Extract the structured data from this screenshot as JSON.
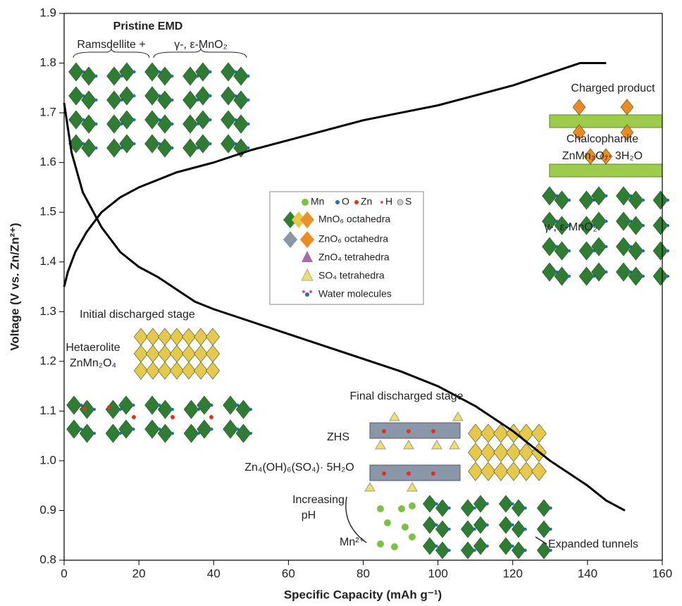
{
  "chart_data": {
    "type": "line",
    "x_label": "Specific Capacity (mAh g⁻¹)",
    "y_label": "Voltage (V vs. Zn/Zn²⁺)",
    "xlim": [
      0,
      160
    ],
    "ylim": [
      0.8,
      1.9
    ],
    "xticks": [
      0,
      20,
      40,
      60,
      80,
      100,
      120,
      140,
      160
    ],
    "yticks": [
      0.8,
      0.9,
      {
        "value": 1,
        "label": "1.0"
      },
      1.1,
      1.2,
      1.3,
      1.4,
      1.5,
      1.6,
      1.7,
      1.8,
      1.9
    ],
    "series": [
      {
        "color": "#000000",
        "x": [
          0,
          2,
          5,
          10,
          15,
          20,
          25,
          30,
          35,
          40,
          50,
          60,
          70,
          80,
          90,
          100,
          110,
          120,
          130,
          140,
          145,
          150
        ],
        "values": [
          1.72,
          1.62,
          1.54,
          1.47,
          1.42,
          1.39,
          1.37,
          1.345,
          1.32,
          1.305,
          1.28,
          1.255,
          1.23,
          1.205,
          1.18,
          1.15,
          1.11,
          1.06,
          1.0,
          0.95,
          0.92,
          0.9
        ]
      },
      {
        "color": "#000000",
        "x": [
          0,
          1,
          3,
          6,
          10,
          15,
          20,
          25,
          30,
          40,
          50,
          60,
          70,
          80,
          90,
          100,
          110,
          120,
          130,
          138,
          145
        ],
        "values": [
          1.35,
          1.38,
          1.42,
          1.46,
          1.5,
          1.53,
          1.55,
          1.565,
          1.58,
          1.6,
          1.625,
          1.645,
          1.665,
          1.685,
          1.7,
          1.715,
          1.735,
          1.755,
          1.78,
          1.8,
          1.8
        ]
      }
    ],
    "annotations": [
      "Pristine EMD",
      "Ramsdellite +",
      "γ-, ε-MnO₂",
      "Charged product",
      "Chalcophanite",
      "ZnMn₃O₇· 3H₂O",
      "γ-, ε-MnO₂",
      "Initial discharged stage",
      "Hetaerolite",
      "ZnMn₂O₄",
      "Final discharged stage",
      "ZHS",
      "Zn₄(OH)₆(SO₄)· 5H₂O",
      "Increasing",
      "pH",
      "Mn²⁺",
      "Expanded tunnels"
    ],
    "legend": {
      "atoms": [
        "Mn",
        "O",
        "Zn",
        "H",
        "S"
      ],
      "items": [
        "MnO₆ octahedra",
        "ZnO₆ octahedra",
        "ZnO₄ tetrahedra",
        "SO₄ tetrahedra",
        "Water molecules"
      ]
    }
  }
}
